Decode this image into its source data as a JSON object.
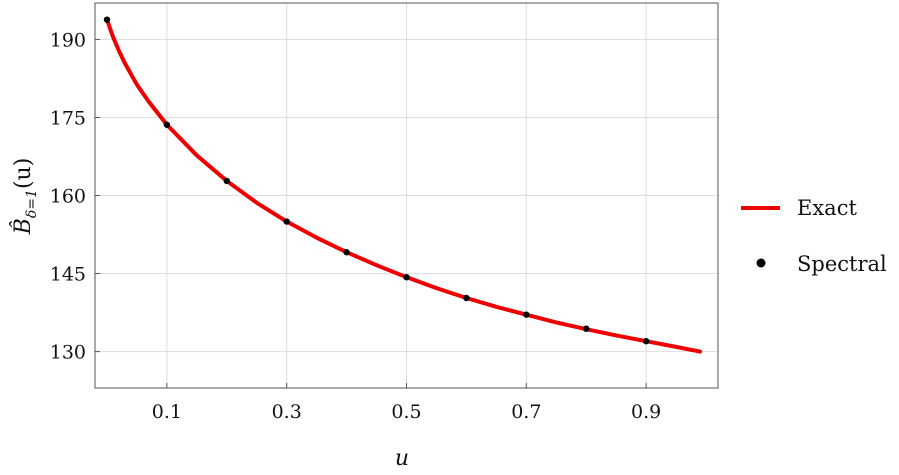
{
  "chart_data": {
    "type": "line",
    "xlabel": "u",
    "ylabel_main": "B̂",
    "ylabel_sub": "δ=1",
    "ylabel_arg": "(u)",
    "xlim": [
      -0.02,
      1.02
    ],
    "ylim": [
      123,
      197
    ],
    "xticks": [
      0.1,
      0.3,
      0.5,
      0.7,
      0.9
    ],
    "xtick_labels": [
      "0.1",
      "0.3",
      "0.5",
      "0.7",
      "0.9"
    ],
    "yticks": [
      130,
      145,
      160,
      175,
      190
    ],
    "ytick_labels": [
      "130",
      "145",
      "160",
      "175",
      "190"
    ],
    "grid": true,
    "legend_position": "right-outside",
    "series": [
      {
        "name": "Exact",
        "kind": "line",
        "color": "#ee0000",
        "x": [
          0.0,
          0.01,
          0.02,
          0.03,
          0.05,
          0.07,
          0.1,
          0.15,
          0.2,
          0.25,
          0.3,
          0.35,
          0.4,
          0.45,
          0.5,
          0.55,
          0.6,
          0.65,
          0.7,
          0.75,
          0.8,
          0.85,
          0.9,
          0.95,
          0.99
        ],
        "y": [
          193.8,
          190.5,
          187.8,
          185.4,
          181.3,
          178.0,
          173.6,
          167.7,
          162.8,
          158.6,
          155.0,
          151.9,
          149.1,
          146.6,
          144.3,
          142.2,
          140.3,
          138.6,
          137.1,
          135.6,
          134.3,
          133.1,
          132.0,
          130.9,
          130.0
        ]
      },
      {
        "name": "Spectral",
        "kind": "scatter",
        "color": "#000000",
        "x": [
          0.0,
          0.1,
          0.2,
          0.3,
          0.4,
          0.5,
          0.6,
          0.7,
          0.8,
          0.9
        ],
        "y": [
          193.8,
          173.6,
          162.8,
          155.0,
          149.1,
          144.3,
          140.3,
          137.1,
          134.4,
          132.0
        ]
      }
    ]
  }
}
